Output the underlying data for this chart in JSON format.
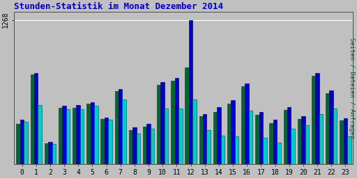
{
  "title": "Stunden-Statistik im Monat Dezember 2014",
  "hours": [
    0,
    1,
    2,
    3,
    4,
    5,
    6,
    7,
    8,
    9,
    10,
    11,
    12,
    13,
    14,
    15,
    16,
    17,
    18,
    19,
    20,
    21,
    22,
    23
  ],
  "seiten": [
    390,
    800,
    195,
    510,
    520,
    545,
    410,
    660,
    320,
    350,
    720,
    760,
    1268,
    440,
    500,
    560,
    710,
    460,
    390,
    500,
    420,
    800,
    650,
    400
  ],
  "dateien": [
    370,
    520,
    175,
    480,
    480,
    510,
    390,
    570,
    270,
    310,
    490,
    490,
    570,
    300,
    250,
    245,
    470,
    230,
    190,
    310,
    340,
    440,
    490,
    245
  ],
  "anfragen": [
    350,
    790,
    180,
    495,
    495,
    530,
    395,
    640,
    295,
    330,
    695,
    735,
    850,
    420,
    460,
    530,
    685,
    430,
    360,
    475,
    395,
    775,
    620,
    385
  ],
  "color_seiten": "#0000cc",
  "color_dateien": "#00cccc",
  "color_anfragen": "#006633",
  "ylabel": "Seiten / Dateien / Anfragen",
  "bg_color": "#c0c0c0",
  "plot_bg": "#c0c0c0",
  "title_color": "#0000cc",
  "ylabel_color": "#006633",
  "ytick_label": "1268",
  "ylim": [
    0,
    1340
  ],
  "bar_width": 0.27
}
